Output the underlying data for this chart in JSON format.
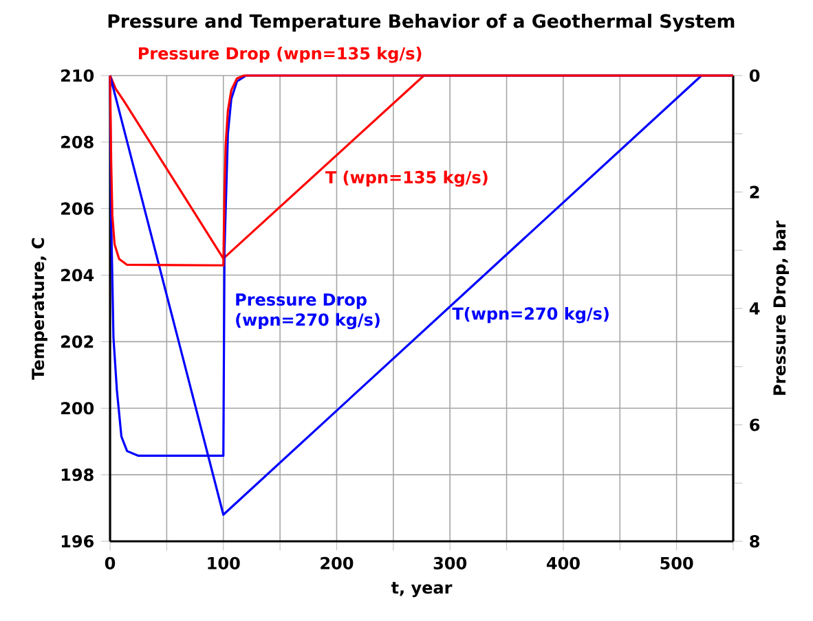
{
  "chart_data": {
    "type": "line",
    "title": "Pressure and Temperature Behavior of a Geothermal System",
    "xlabel": "t, year",
    "ylabel": "Temperature, C",
    "y2label": "Pressure Drop, bar",
    "xlim": [
      0,
      550
    ],
    "xticks": [
      0,
      {
        "value": 50,
        "label": null
      },
      100,
      {
        "value": 150,
        "label": null
      },
      200,
      {
        "value": 250,
        "label": null
      },
      300,
      {
        "value": 350,
        "label": null
      },
      400,
      {
        "value": 450,
        "label": null
      },
      500,
      {
        "value": 550,
        "label": null
      }
    ],
    "ylim": [
      196,
      210
    ],
    "yticks": [
      196,
      198,
      200,
      202,
      204,
      206,
      208,
      210
    ],
    "y2lim": [
      8,
      0
    ],
    "y2ticks": [
      0,
      {
        "value": 1,
        "label": null
      },
      2,
      {
        "value": 3,
        "label": null
      },
      4,
      {
        "value": 5,
        "label": null
      },
      6,
      {
        "value": 7,
        "label": null
      },
      8
    ],
    "grid": true,
    "marker": "none",
    "line_style": "solid",
    "series": [
      {
        "name": "T (wpn=135 kg/s)",
        "color": "#ff0000",
        "x": [
          0,
          5,
          12,
          100,
          277,
          550
        ],
        "values": [
          210,
          209.6,
          209.25,
          204.5,
          210,
          210
        ]
      },
      {
        "name": "T(wpn=270 kg/s)",
        "color": "#0000ff",
        "x": [
          0,
          100,
          522
        ],
        "values": [
          210,
          196.8,
          210
        ]
      },
      {
        "name": "Pressure Drop (wpn=270 kg/s)",
        "color": "#0000ff",
        "axis": "y2",
        "x": [
          0,
          1,
          3,
          6,
          8,
          10,
          15,
          25,
          100,
          101,
          104,
          107,
          112,
          120,
          550
        ],
        "values": [
          0,
          2.5,
          4.5,
          5.4,
          5.8,
          6.2,
          6.45,
          6.53,
          6.53,
          3.0,
          1.0,
          0.4,
          0.1,
          0,
          0
        ]
      },
      {
        "name": "Pressure Drop (wpn=135 kg/s)",
        "color": "#ff0000",
        "axis": "y2",
        "x": [
          0,
          1,
          2,
          4,
          8,
          15,
          100,
          101,
          102,
          104,
          107,
          112,
          118,
          550
        ],
        "values": [
          0,
          1.5,
          2.4,
          2.9,
          3.15,
          3.25,
          3.26,
          2.0,
          1.2,
          0.6,
          0.25,
          0.05,
          0,
          0
        ]
      }
    ]
  }
}
